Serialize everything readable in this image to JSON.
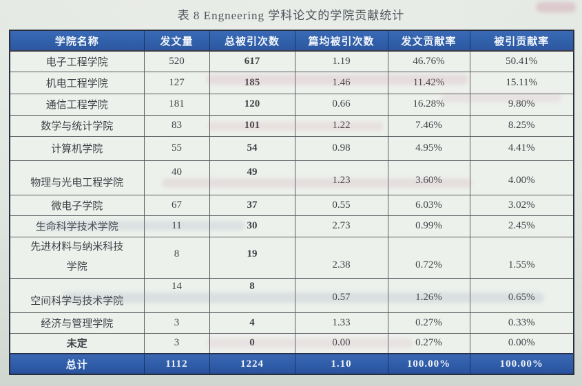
{
  "title": "表 8  Engneering 学科论文的学院贡献统计",
  "headers": [
    "学院名称",
    "发文量",
    "总被引次数",
    "篇均被引次数",
    "发文贡献率",
    "被引贡献率"
  ],
  "rows": [
    [
      "电子工程学院",
      "520",
      "617",
      "1.19",
      "46.76%",
      "50.41%"
    ],
    [
      "机电工程学院",
      "127",
      "185",
      "1.46",
      "11.42%",
      "15.11%"
    ],
    [
      "通信工程学院",
      "181",
      "120",
      "0.66",
      "16.28%",
      "9.80%"
    ],
    [
      "数学与统计学院",
      "83",
      "101",
      "1.22",
      "7.46%",
      "8.25%"
    ],
    [
      "计算机学院",
      "55",
      "54",
      "0.98",
      "4.95%",
      "4.41%"
    ],
    [
      "物理与光电工程学院",
      "40",
      "49",
      "1.23",
      "3.60%",
      "4.00%"
    ],
    [
      "微电子学院",
      "67",
      "37",
      "0.55",
      "6.03%",
      "3.02%"
    ],
    [
      "生命科学技术学院",
      "11",
      "30",
      "2.73",
      "0.99%",
      "2.45%"
    ],
    [
      "先进材料与纳米科技\n学院",
      "8",
      "19",
      "2.38",
      "0.72%",
      "1.55%"
    ],
    [
      "空间科学与技术学院",
      "14",
      "8",
      "0.57",
      "1.26%",
      "0.65%"
    ],
    [
      "经济与管理学院",
      "3",
      "4",
      "1.33",
      "0.27%",
      "0.33%"
    ],
    [
      "未定",
      "3",
      "0",
      "0.00",
      "0.27%",
      "0.00%"
    ]
  ],
  "footer": [
    "总计",
    "1112",
    "1224",
    "1.10",
    "100.00%",
    "100.00%"
  ],
  "chart_data": {
    "type": "table",
    "title": "表 8  Engneering 学科论文的学院贡献统计",
    "columns": [
      "学院名称",
      "发文量",
      "总被引次数",
      "篇均被引次数",
      "发文贡献率",
      "被引贡献率"
    ],
    "total_row": [
      "总计",
      1112,
      1224,
      1.1,
      "100.00%",
      "100.00%"
    ]
  },
  "colors": {
    "header_bg": "#3160aa",
    "footer_bg": "#2f5ca8",
    "table_bg": "#edf1ec",
    "page_bg": "#dce1db",
    "border_dark": "#272e3f",
    "grid_line": "#5b5a60",
    "header_text": "#f2f6fb",
    "body_text": "#3f4146",
    "bleed_pink": "#c77f9d"
  }
}
